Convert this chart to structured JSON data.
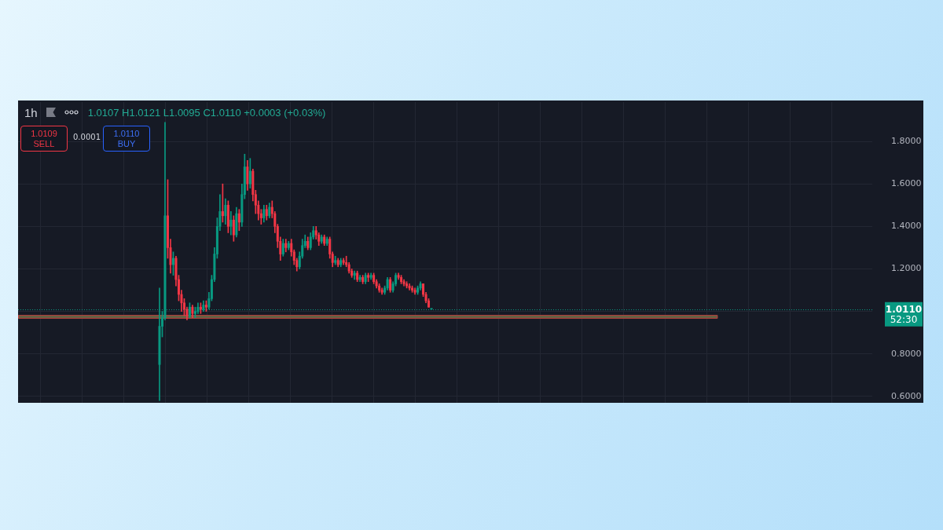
{
  "chart_data": {
    "type": "candlestick",
    "title": "1h",
    "categories": [
      null,
      null,
      null,
      null,
      null,
      null,
      null,
      null,
      null,
      null,
      null,
      null,
      null,
      null,
      null,
      null,
      null,
      null,
      null,
      null,
      null,
      null,
      null,
      null,
      null,
      null,
      null,
      null,
      null,
      null,
      null,
      null,
      null,
      null,
      null,
      null,
      null,
      null,
      null,
      null,
      null,
      null,
      null,
      null,
      null,
      null,
      null,
      null,
      null,
      null,
      null,
      null,
      null,
      null,
      null,
      null,
      null,
      null,
      null,
      null,
      null,
      null,
      null,
      null,
      null,
      null,
      null,
      null,
      null,
      null,
      null,
      null,
      null,
      null,
      null,
      null,
      null,
      null,
      null,
      null,
      null,
      null,
      null,
      null,
      null,
      null,
      null,
      null,
      null,
      null,
      null,
      null,
      null,
      null,
      null,
      null,
      null,
      null,
      null,
      null,
      null,
      null,
      null,
      null,
      null,
      null,
      null,
      null,
      null,
      null,
      null,
      null,
      null,
      null,
      null,
      null,
      null,
      null,
      null,
      null,
      null,
      null,
      null,
      null,
      null,
      null,
      null,
      null,
      null,
      null,
      null,
      null,
      null,
      null,
      null,
      null,
      null,
      null,
      null,
      null,
      null,
      null,
      null,
      null,
      null,
      null,
      null,
      null,
      null,
      null,
      null,
      null,
      null,
      null,
      null,
      null,
      null,
      null,
      null,
      null,
      null,
      null,
      null,
      null,
      null,
      null,
      null,
      null,
      null,
      null,
      null,
      null,
      null,
      null,
      null,
      null,
      null,
      null,
      null,
      null,
      null,
      null,
      null,
      null,
      null,
      null,
      null,
      null,
      null,
      null,
      null,
      null,
      null,
      null,
      null,
      null,
      null,
      null,
      null,
      null,
      null,
      null,
      null,
      null,
      null,
      null,
      null,
      null,
      null,
      null,
      null,
      null,
      null,
      null,
      null,
      null,
      null,
      null,
      null,
      null,
      null,
      null,
      null,
      null,
      null,
      null,
      null,
      null,
      null,
      null,
      null,
      null,
      null,
      null,
      null,
      null,
      null,
      null,
      null,
      null,
      null,
      null,
      null,
      null,
      null,
      null,
      null,
      null,
      null,
      null,
      null,
      null,
      null,
      null,
      null,
      null,
      null,
      null,
      null,
      null,
      null,
      null,
      null,
      null,
      null,
      null,
      null,
      null,
      null,
      null,
      null,
      null,
      null,
      null,
      null,
      null,
      null,
      null,
      null,
      null,
      null,
      null,
      null,
      null,
      null,
      null,
      null,
      null,
      null,
      null,
      null,
      null,
      null,
      null,
      null,
      null,
      null,
      null,
      null,
      null,
      null,
      null,
      null,
      null,
      null,
      null,
      null,
      null,
      null,
      null,
      null
    ],
    "ohlc": [
      null,
      null,
      null,
      null,
      null,
      null,
      null,
      null,
      null,
      null,
      null,
      null,
      null,
      null,
      null,
      null,
      null,
      null,
      null,
      null,
      null,
      null,
      null,
      null,
      null,
      null,
      null,
      null,
      null,
      null,
      null,
      null,
      null,
      null,
      null,
      null,
      null,
      null,
      null,
      null,
      null,
      null,
      null,
      null,
      null,
      null,
      null,
      null,
      null,
      null,
      null,
      [
        0.75,
        1.11,
        0.58,
        0.93
      ],
      [
        0.93,
        1.0,
        0.88,
        0.97
      ],
      [
        0.97,
        1.89,
        0.96,
        1.45
      ],
      [
        1.45,
        1.62,
        1.25,
        1.3
      ],
      [
        1.3,
        1.34,
        1.18,
        1.22
      ],
      [
        1.22,
        1.28,
        1.17,
        1.25
      ],
      [
        1.25,
        1.26,
        1.12,
        1.15
      ],
      [
        1.15,
        1.17,
        1.05,
        1.08
      ],
      [
        1.08,
        1.1,
        1.0,
        1.04
      ],
      [
        1.04,
        1.06,
        0.98,
        1.01
      ],
      [
        1.01,
        1.02,
        0.96,
        0.98
      ],
      [
        0.98,
        1.04,
        0.97,
        1.02
      ],
      [
        1.02,
        1.03,
        0.97,
        0.99
      ],
      [
        0.99,
        1.02,
        0.97,
        1.0
      ],
      [
        1.0,
        1.04,
        0.99,
        1.02
      ],
      [
        1.02,
        1.04,
        0.99,
        1.01
      ],
      [
        1.01,
        1.05,
        1.0,
        1.03
      ],
      [
        1.03,
        1.05,
        1.0,
        1.02
      ],
      [
        1.02,
        1.09,
        1.01,
        1.06
      ],
      [
        1.06,
        1.17,
        1.05,
        1.15
      ],
      [
        1.15,
        1.3,
        1.14,
        1.27
      ],
      [
        1.27,
        1.44,
        1.25,
        1.4
      ],
      [
        1.4,
        1.55,
        1.38,
        1.47
      ],
      [
        1.47,
        1.6,
        1.42,
        1.45
      ],
      [
        1.45,
        1.53,
        1.41,
        1.5
      ],
      [
        1.5,
        1.52,
        1.37,
        1.4
      ],
      [
        1.4,
        1.47,
        1.36,
        1.43
      ],
      [
        1.43,
        1.45,
        1.33,
        1.36
      ],
      [
        1.36,
        1.49,
        1.35,
        1.46
      ],
      [
        1.46,
        1.48,
        1.38,
        1.42
      ],
      [
        1.42,
        1.6,
        1.4,
        1.55
      ],
      [
        1.55,
        1.74,
        1.53,
        1.68
      ],
      [
        1.68,
        1.71,
        1.57,
        1.6
      ],
      [
        1.6,
        1.72,
        1.58,
        1.66
      ],
      [
        1.66,
        1.67,
        1.52,
        1.55
      ],
      [
        1.55,
        1.57,
        1.46,
        1.5
      ],
      [
        1.5,
        1.52,
        1.43,
        1.46
      ],
      [
        1.46,
        1.48,
        1.41,
        1.44
      ],
      [
        1.44,
        1.5,
        1.42,
        1.48
      ],
      [
        1.48,
        1.5,
        1.43,
        1.45
      ],
      [
        1.45,
        1.51,
        1.44,
        1.49
      ],
      [
        1.49,
        1.52,
        1.44,
        1.46
      ],
      [
        1.46,
        1.47,
        1.37,
        1.4
      ],
      [
        1.4,
        1.41,
        1.3,
        1.33
      ],
      [
        1.33,
        1.35,
        1.24,
        1.27
      ],
      [
        1.27,
        1.34,
        1.26,
        1.32
      ],
      [
        1.32,
        1.34,
        1.28,
        1.3
      ],
      [
        1.3,
        1.33,
        1.29,
        1.32
      ],
      [
        1.32,
        1.34,
        1.26,
        1.28
      ],
      [
        1.28,
        1.29,
        1.22,
        1.24
      ],
      [
        1.24,
        1.25,
        1.19,
        1.21
      ],
      [
        1.21,
        1.28,
        1.2,
        1.26
      ],
      [
        1.26,
        1.34,
        1.25,
        1.31
      ],
      [
        1.31,
        1.36,
        1.3,
        1.33
      ],
      [
        1.33,
        1.35,
        1.29,
        1.3
      ],
      [
        1.3,
        1.37,
        1.29,
        1.35
      ],
      [
        1.35,
        1.4,
        1.34,
        1.38
      ],
      [
        1.38,
        1.4,
        1.34,
        1.36
      ],
      [
        1.36,
        1.37,
        1.31,
        1.33
      ],
      [
        1.33,
        1.36,
        1.32,
        1.35
      ],
      [
        1.35,
        1.36,
        1.31,
        1.32
      ],
      [
        1.32,
        1.35,
        1.31,
        1.34
      ],
      [
        1.34,
        1.35,
        1.25,
        1.27
      ],
      [
        1.27,
        1.28,
        1.21,
        1.23
      ],
      [
        1.23,
        1.26,
        1.22,
        1.24
      ],
      [
        1.24,
        1.25,
        1.21,
        1.22
      ],
      [
        1.22,
        1.25,
        1.21,
        1.24
      ],
      [
        1.24,
        1.25,
        1.22,
        1.23
      ],
      [
        1.23,
        1.26,
        1.21,
        1.22
      ],
      [
        1.22,
        1.23,
        1.18,
        1.19
      ],
      [
        1.19,
        1.2,
        1.16,
        1.17
      ],
      [
        1.17,
        1.19,
        1.15,
        1.18
      ],
      [
        1.18,
        1.19,
        1.14,
        1.15
      ],
      [
        1.15,
        1.17,
        1.14,
        1.16
      ],
      [
        1.16,
        1.17,
        1.13,
        1.14
      ],
      [
        1.14,
        1.18,
        1.13,
        1.17
      ],
      [
        1.17,
        1.18,
        1.14,
        1.16
      ],
      [
        1.16,
        1.18,
        1.15,
        1.17
      ],
      [
        1.17,
        1.18,
        1.13,
        1.14
      ],
      [
        1.14,
        1.15,
        1.11,
        1.12
      ],
      [
        1.12,
        1.13,
        1.09,
        1.1
      ],
      [
        1.1,
        1.11,
        1.08,
        1.09
      ],
      [
        1.09,
        1.12,
        1.08,
        1.11
      ],
      [
        1.11,
        1.16,
        1.1,
        1.15
      ],
      [
        1.15,
        1.16,
        1.09,
        1.1
      ],
      [
        1.1,
        1.14,
        1.09,
        1.13
      ],
      [
        1.13,
        1.18,
        1.12,
        1.17
      ],
      [
        1.17,
        1.18,
        1.15,
        1.16
      ],
      [
        1.16,
        1.17,
        1.13,
        1.14
      ],
      [
        1.14,
        1.15,
        1.12,
        1.13
      ],
      [
        1.13,
        1.14,
        1.11,
        1.12
      ],
      [
        1.12,
        1.13,
        1.1,
        1.11
      ],
      [
        1.11,
        1.12,
        1.09,
        1.1
      ],
      [
        1.1,
        1.11,
        1.08,
        1.09
      ],
      [
        1.09,
        1.12,
        1.08,
        1.11
      ],
      [
        1.11,
        1.14,
        1.1,
        1.13
      ],
      [
        1.13,
        1.13,
        1.07,
        1.08
      ],
      [
        1.08,
        1.09,
        1.04,
        1.05
      ],
      [
        1.05,
        1.06,
        1.02,
        1.02
      ],
      [
        1.0107,
        1.0121,
        1.0095,
        1.011
      ],
      null,
      null,
      null,
      null,
      null,
      null,
      null,
      null,
      null,
      null,
      null,
      null,
      null,
      null,
      null,
      null,
      null,
      null,
      null,
      null,
      null,
      null,
      null,
      null,
      null,
      null,
      null,
      null,
      null,
      null,
      null,
      null,
      null,
      null,
      null,
      null,
      null,
      null,
      null,
      null,
      null,
      null,
      null,
      null,
      null,
      null,
      null,
      null,
      null,
      null,
      null,
      null,
      null,
      null,
      null,
      null,
      null,
      null,
      null,
      null,
      null,
      null,
      null,
      null,
      null,
      null,
      null,
      null,
      null,
      null,
      null,
      null,
      null,
      null,
      null,
      null,
      null,
      null,
      null,
      null,
      null,
      null,
      null,
      null,
      null,
      null,
      null,
      null,
      null,
      null,
      null,
      null,
      null,
      null,
      null,
      null,
      null,
      null,
      null,
      null,
      null,
      null,
      null,
      null,
      null,
      null,
      null,
      null,
      null,
      null,
      null,
      null,
      null,
      null,
      null,
      null,
      null,
      null,
      null,
      null,
      null,
      null,
      null,
      null,
      null,
      null,
      null,
      null,
      null,
      null,
      null,
      null,
      null,
      null,
      null,
      null,
      null,
      null,
      null,
      null,
      null,
      null,
      null,
      null,
      null,
      null,
      null,
      null,
      null,
      null,
      null,
      null,
      null,
      null,
      null,
      null,
      null,
      null,
      null,
      null
    ],
    "colors": [
      null,
      null,
      null,
      null,
      null,
      null,
      null,
      null,
      null,
      null,
      null,
      null,
      null,
      null,
      null,
      null,
      null,
      null,
      null,
      null,
      null,
      null,
      null,
      null,
      null,
      null,
      null,
      null,
      null,
      null,
      null,
      null,
      null,
      null,
      null,
      null,
      null,
      null,
      null,
      null,
      null,
      null,
      null,
      null,
      null,
      null,
      null,
      null,
      null,
      null,
      null,
      "#089981",
      "#089981",
      "#089981",
      "#f23645",
      "#f23645",
      "#089981",
      "#f23645",
      "#f23645",
      "#f23645",
      "#f23645",
      "#f23645",
      "#089981",
      "#f23645",
      "#089981",
      "#089981",
      "#f23645",
      "#089981",
      "#f23645",
      "#089981",
      "#089981",
      "#089981",
      "#089981",
      "#089981",
      "#f23645",
      "#089981",
      "#f23645",
      "#089981",
      "#f23645",
      "#089981",
      "#f23645",
      "#089981",
      "#089981",
      "#f23645",
      "#089981",
      "#f23645",
      "#f23645",
      "#f23645",
      "#f23645",
      "#089981",
      "#f23645",
      "#089981",
      "#f23645",
      "#f23645",
      "#f23645",
      "#f23645",
      "#089981",
      "#f23645",
      "#089981",
      "#f23645",
      "#f23645",
      "#f23645",
      "#089981",
      "#089981",
      "#089981",
      "#f23645",
      "#089981",
      "#089981",
      "#f23645",
      "#f23645",
      "#089981",
      "#f23645",
      "#089981",
      "#f23645",
      "#f23645",
      "#089981",
      "#f23645",
      "#089981",
      "#f23645",
      "#f23645",
      "#f23645",
      "#f23645",
      "#089981",
      "#f23645",
      "#089981",
      "#f23645",
      "#089981",
      "#f23645",
      "#089981",
      "#f23645",
      "#f23645",
      "#f23645",
      "#f23645",
      "#089981",
      "#089981",
      "#f23645",
      "#089981",
      "#089981",
      "#f23645",
      "#f23645",
      "#f23645",
      "#f23645",
      "#f23645",
      "#f23645",
      "#f23645",
      "#089981",
      "#089981",
      "#f23645",
      "#f23645",
      "#f23645",
      "#089981",
      null,
      null,
      null,
      null,
      null,
      null,
      null,
      null,
      null,
      null,
      null,
      null,
      null,
      null,
      null,
      null,
      null,
      null,
      null,
      null,
      null,
      null,
      null,
      null,
      null,
      null,
      null,
      null,
      null,
      null,
      null,
      null,
      null,
      null,
      null,
      null,
      null,
      null,
      null,
      null,
      null,
      null,
      null,
      null,
      null,
      null,
      null,
      null,
      null,
      null,
      null,
      null,
      null,
      null,
      null,
      null,
      null,
      null,
      null,
      null,
      null,
      null,
      null,
      null,
      null,
      null,
      null,
      null,
      null,
      null,
      null,
      null,
      null,
      null,
      null,
      null,
      null,
      null,
      null,
      null,
      null,
      null,
      null,
      null,
      null,
      null,
      null,
      null,
      null,
      null,
      null,
      null,
      null,
      null,
      null,
      null,
      null,
      null,
      null,
      null,
      null,
      null,
      null,
      null,
      null,
      null,
      null,
      null,
      null,
      null,
      null,
      null,
      null,
      null,
      null,
      null,
      null,
      null,
      null,
      null,
      null,
      null,
      null,
      null,
      null,
      null,
      null,
      null,
      null,
      null,
      null,
      null,
      null,
      null,
      null,
      null,
      null,
      null,
      null,
      null,
      null,
      null,
      null,
      null,
      null,
      null,
      null,
      null,
      null,
      null,
      null,
      null,
      null,
      null,
      null,
      null,
      null,
      null,
      null,
      null
    ],
    "ylim": [
      0.57,
      1.985
    ],
    "yticks": [
      {
        "value": 0.6,
        "label": "0.6000"
      },
      {
        "value": 0.8,
        "label": "0.8000"
      },
      {
        "value": 1.0,
        "label": null
      },
      {
        "value": 1.2,
        "label": "1.2000"
      },
      {
        "value": 1.4,
        "label": "1.4000"
      },
      {
        "value": 1.6,
        "label": "1.6000"
      },
      {
        "value": 1.8,
        "label": "1.8000"
      }
    ],
    "grid": true,
    "tick_labels": "y",
    "ref_lines": [
      {
        "axis": "y",
        "value": 1.011,
        "label": "1.0110",
        "color": "#089981",
        "line_style": "dotted"
      }
    ],
    "bands": [
      {
        "axis": "y",
        "from": 0.966,
        "to": 0.983,
        "color": "#5c6543"
      }
    ],
    "annotations": [
      "1.0107 H1.0121 L1.0095 C1.0110 +0.0003 (+0.03%)",
      "1.0109",
      "SELL",
      "0.0001",
      "1.0110",
      "BUY",
      "52:30"
    ]
  }
}
